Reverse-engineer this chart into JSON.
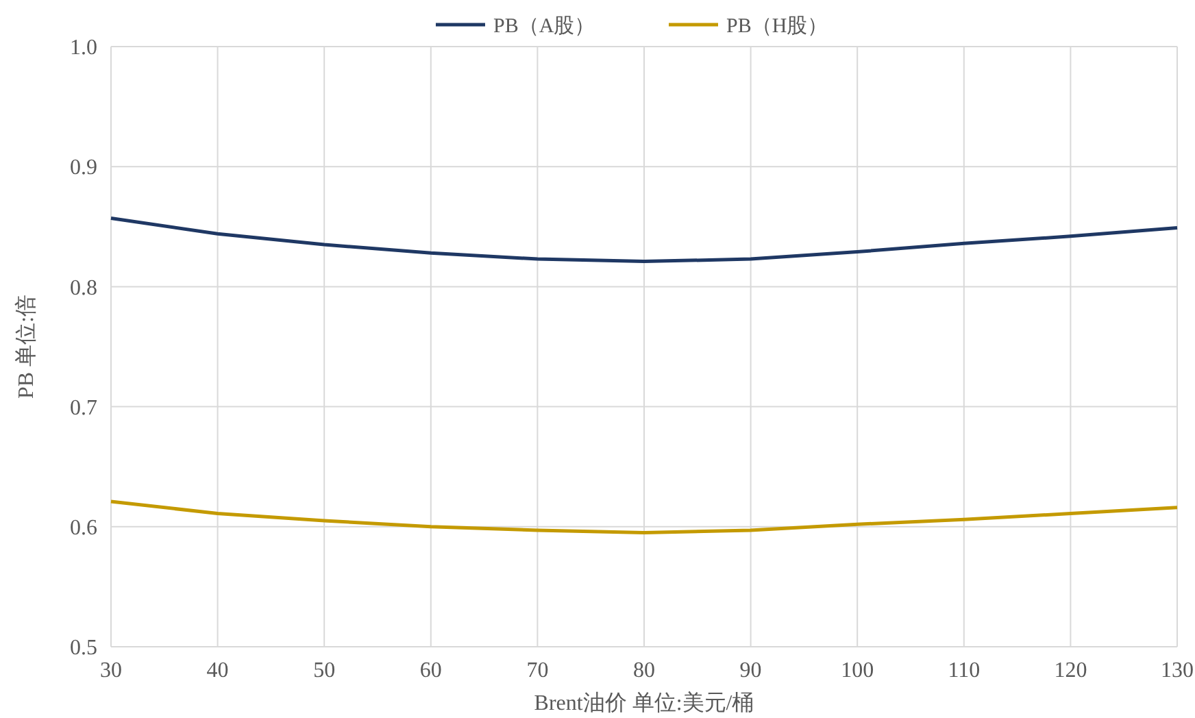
{
  "chart_data": {
    "type": "line",
    "xlabel": "Brent油价 单位:美元/桶",
    "ylabel": "PB 单位:倍",
    "x": [
      30,
      40,
      50,
      60,
      70,
      80,
      90,
      100,
      110,
      120,
      130
    ],
    "series": [
      {
        "name": "PB（A股）",
        "color": "#1f3864",
        "values": [
          0.857,
          0.844,
          0.835,
          0.828,
          0.823,
          0.821,
          0.823,
          0.829,
          0.836,
          0.842,
          0.849
        ]
      },
      {
        "name": "PB（H股）",
        "color": "#c49a00",
        "values": [
          0.621,
          0.611,
          0.605,
          0.6,
          0.597,
          0.595,
          0.597,
          0.602,
          0.606,
          0.611,
          0.616
        ]
      }
    ],
    "xlim": [
      30,
      130
    ],
    "xticks": [
      30,
      40,
      50,
      60,
      70,
      80,
      90,
      100,
      110,
      120,
      130
    ],
    "ylim": [
      0.5,
      1.0
    ],
    "yticks": [
      {
        "value": 0.5,
        "label": "0.5"
      },
      {
        "value": 0.6,
        "label": "0.6"
      },
      {
        "value": 0.7,
        "label": "0.7"
      },
      {
        "value": 0.8,
        "label": "0.8"
      },
      {
        "value": 0.9,
        "label": "0.9"
      },
      {
        "value": 1.0,
        "label": "1.0"
      }
    ],
    "grid": true,
    "legend": "top",
    "marker": "none",
    "line_style": "solid"
  }
}
